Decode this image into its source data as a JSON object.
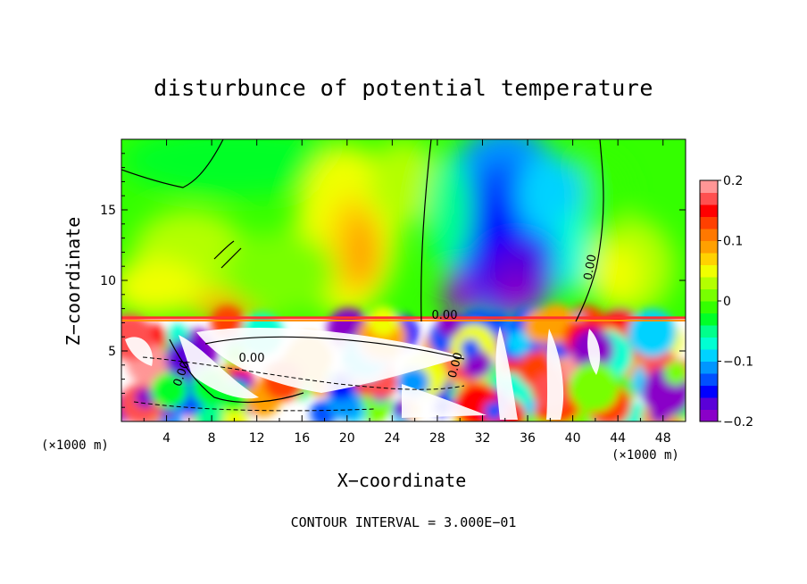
{
  "chart_data": {
    "type": "heatmap",
    "title": "disturbunce of potential temperature",
    "xlabel": "X−coordinate",
    "ylabel": "Z−coordinate",
    "x_unit_left": "(×1000 m)",
    "x_unit_right": "(×1000 m)",
    "xlim": [
      0,
      50
    ],
    "ylim": [
      0,
      20
    ],
    "x_ticks": [
      4,
      8,
      12,
      16,
      20,
      24,
      28,
      32,
      36,
      40,
      44,
      48
    ],
    "y_ticks": [
      5,
      10,
      15
    ],
    "colorbar": {
      "range": [
        -0.2,
        0.2
      ],
      "tick_values": [
        0.2,
        0.1,
        0,
        -0.1,
        -0.2
      ],
      "tick_labels": [
        "0.2",
        "0.1",
        "0",
        "−0.1",
        "−0.2"
      ],
      "colors": [
        "#8a00c8",
        "#5a00d8",
        "#0000ff",
        "#0050ff",
        "#0096ff",
        "#00d2ff",
        "#00ffd2",
        "#00ff8c",
        "#00ff28",
        "#34ff00",
        "#78ff00",
        "#b4ff00",
        "#f0ff00",
        "#ffd200",
        "#ffa000",
        "#ff7800",
        "#ff4000",
        "#ff0000",
        "#ff5050",
        "#ff9696"
      ]
    },
    "contour_labels": [
      "0.00",
      "0.00",
      "0.00",
      "0.00",
      "0.00"
    ],
    "footnote": "CONTOUR INTERVAL = 3.000E−01"
  }
}
